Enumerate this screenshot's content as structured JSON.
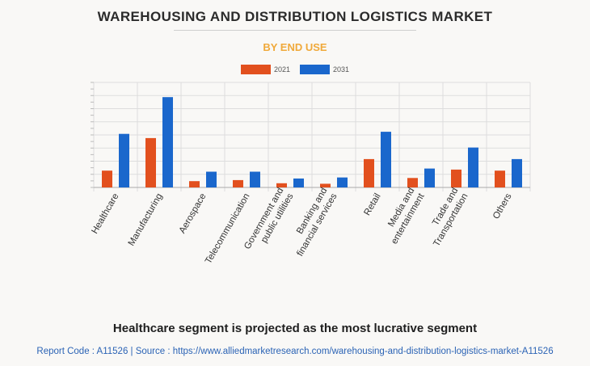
{
  "header": {
    "title": "WAREHOUSING AND DISTRIBUTION LOGISTICS MARKET",
    "subtitle": "BY END USE"
  },
  "colors": {
    "series_2021": "#e2501e",
    "series_2031": "#1a67cc",
    "title_accent": "#f0a93a",
    "grid": "#dddddd"
  },
  "chart_data": {
    "type": "bar",
    "categories": [
      "Healthcare",
      "Manufacturing",
      "Aerospace",
      "Telecommunication",
      "Government and public utilities",
      "Banking and financial services",
      "Retail",
      "Media and entertainment",
      "Trade and Transportation",
      "Others"
    ],
    "category_lines": [
      [
        "Healthcare"
      ],
      [
        "Manufacturing"
      ],
      [
        "Aerospace"
      ],
      [
        "Telecommunication"
      ],
      [
        "Government and",
        "public utilities"
      ],
      [
        "Banking and",
        "financial services"
      ],
      [
        "Retail"
      ],
      [
        "Media and",
        "entertainment"
      ],
      [
        "Trade and",
        "Transportation"
      ],
      [
        "Others"
      ]
    ],
    "series": [
      {
        "name": "2021",
        "values": [
          1.6,
          4.7,
          0.6,
          0.7,
          0.4,
          0.35,
          2.7,
          0.9,
          1.7,
          1.6
        ]
      },
      {
        "name": "2031",
        "values": [
          5.1,
          8.6,
          1.5,
          1.5,
          0.85,
          0.95,
          5.3,
          1.8,
          3.8,
          2.7
        ]
      }
    ],
    "ylim": [
      0,
      10
    ],
    "grid": true,
    "legend": "top",
    "xlabel": "",
    "ylabel": ""
  },
  "footer": {
    "headline": "Healthcare segment is projected as the most lucrative segment",
    "report": "Report Code : A11526  |  Source : https://www.alliedmarketresearch.com/warehousing-and-distribution-logistics-market-A11526"
  }
}
